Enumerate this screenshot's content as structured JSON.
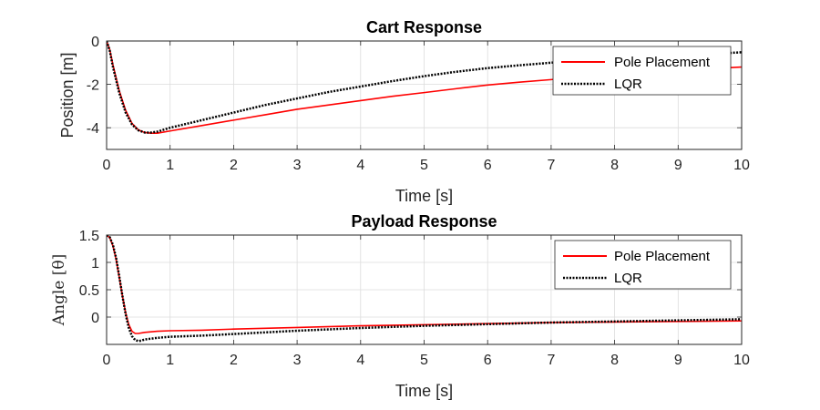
{
  "chart_data": [
    {
      "type": "line",
      "title": "Cart Response",
      "xlabel": "Time [s]",
      "ylabel": "Position [m]",
      "xlim": [
        0,
        10
      ],
      "ylim": [
        -5,
        0
      ],
      "xticks": [
        0,
        1,
        2,
        3,
        4,
        5,
        6,
        7,
        8,
        9,
        10
      ],
      "yticks": [
        -4,
        -2,
        0
      ],
      "xtick_labels": [
        "0",
        "1",
        "2",
        "3",
        "4",
        "5",
        "6",
        "7",
        "8",
        "9",
        "10"
      ],
      "ytick_labels": [
        "-4",
        "-2",
        "0"
      ],
      "grid": true,
      "legend_position": "top-right",
      "series": [
        {
          "name": "Pole Placement",
          "color": "#ff0000",
          "style": "solid",
          "x": [
            0,
            0.05,
            0.1,
            0.2,
            0.3,
            0.4,
            0.5,
            0.6,
            0.7,
            0.8,
            1,
            1.5,
            2,
            2.5,
            3,
            3.5,
            4,
            4.5,
            5,
            5.5,
            6,
            6.5,
            7,
            7.5,
            8,
            8.5,
            9,
            9.5,
            10
          ],
          "y": [
            0,
            -0.4,
            -1.1,
            -2.3,
            -3.2,
            -3.8,
            -4.1,
            -4.22,
            -4.25,
            -4.25,
            -4.15,
            -3.9,
            -3.65,
            -3.4,
            -3.15,
            -2.95,
            -2.75,
            -2.55,
            -2.38,
            -2.2,
            -2.03,
            -1.9,
            -1.78,
            -1.65,
            -1.55,
            -1.45,
            -1.35,
            -1.28,
            -1.2
          ]
        },
        {
          "name": "LQR",
          "color": "#000000",
          "style": "dotted",
          "x": [
            0,
            0.05,
            0.1,
            0.2,
            0.3,
            0.4,
            0.5,
            0.6,
            0.7,
            0.8,
            1,
            1.5,
            2,
            2.5,
            3,
            3.5,
            4,
            4.5,
            5,
            5.5,
            6,
            6.5,
            7,
            7.5,
            8,
            8.5,
            9,
            9.5,
            10
          ],
          "y": [
            0,
            -0.45,
            -1.2,
            -2.4,
            -3.3,
            -3.85,
            -4.12,
            -4.22,
            -4.22,
            -4.18,
            -4.0,
            -3.65,
            -3.3,
            -2.95,
            -2.65,
            -2.35,
            -2.1,
            -1.85,
            -1.62,
            -1.42,
            -1.25,
            -1.12,
            -1.0,
            -0.9,
            -0.82,
            -0.74,
            -0.67,
            -0.6,
            -0.52
          ]
        }
      ]
    },
    {
      "type": "line",
      "title": "Payload Response",
      "xlabel": "Time [s]",
      "ylabel": "Angle [θ]",
      "xlim": [
        0,
        10
      ],
      "ylim": [
        -0.5,
        1.5
      ],
      "xticks": [
        0,
        1,
        2,
        3,
        4,
        5,
        6,
        7,
        8,
        9,
        10
      ],
      "yticks": [
        0,
        0.5,
        1,
        1.5
      ],
      "xtick_labels": [
        "0",
        "1",
        "2",
        "3",
        "4",
        "5",
        "6",
        "7",
        "8",
        "9",
        "10"
      ],
      "ytick_labels": [
        "0",
        "0.5",
        "1",
        "1.5"
      ],
      "grid": true,
      "legend_position": "top-right",
      "series": [
        {
          "name": "Pole Placement",
          "color": "#ff0000",
          "style": "solid",
          "x": [
            0,
            0.05,
            0.1,
            0.15,
            0.2,
            0.25,
            0.3,
            0.35,
            0.4,
            0.45,
            0.5,
            0.6,
            0.8,
            1,
            1.5,
            2,
            3,
            4,
            5,
            6,
            7,
            8,
            9,
            10
          ],
          "y": [
            1.5,
            1.45,
            1.3,
            1.05,
            0.72,
            0.38,
            0.08,
            -0.14,
            -0.26,
            -0.3,
            -0.3,
            -0.28,
            -0.26,
            -0.25,
            -0.24,
            -0.22,
            -0.19,
            -0.16,
            -0.14,
            -0.12,
            -0.1,
            -0.09,
            -0.08,
            -0.07
          ]
        },
        {
          "name": "LQR",
          "color": "#000000",
          "style": "dotted",
          "x": [
            0,
            0.05,
            0.1,
            0.15,
            0.2,
            0.25,
            0.3,
            0.35,
            0.4,
            0.45,
            0.5,
            0.55,
            0.6,
            0.8,
            1,
            1.5,
            2,
            3,
            4,
            5,
            6,
            7,
            8,
            9,
            10
          ],
          "y": [
            1.5,
            1.46,
            1.32,
            1.08,
            0.74,
            0.38,
            0.05,
            -0.2,
            -0.35,
            -0.42,
            -0.44,
            -0.43,
            -0.41,
            -0.38,
            -0.36,
            -0.34,
            -0.31,
            -0.25,
            -0.2,
            -0.16,
            -0.13,
            -0.1,
            -0.08,
            -0.06,
            -0.04
          ]
        }
      ]
    }
  ]
}
